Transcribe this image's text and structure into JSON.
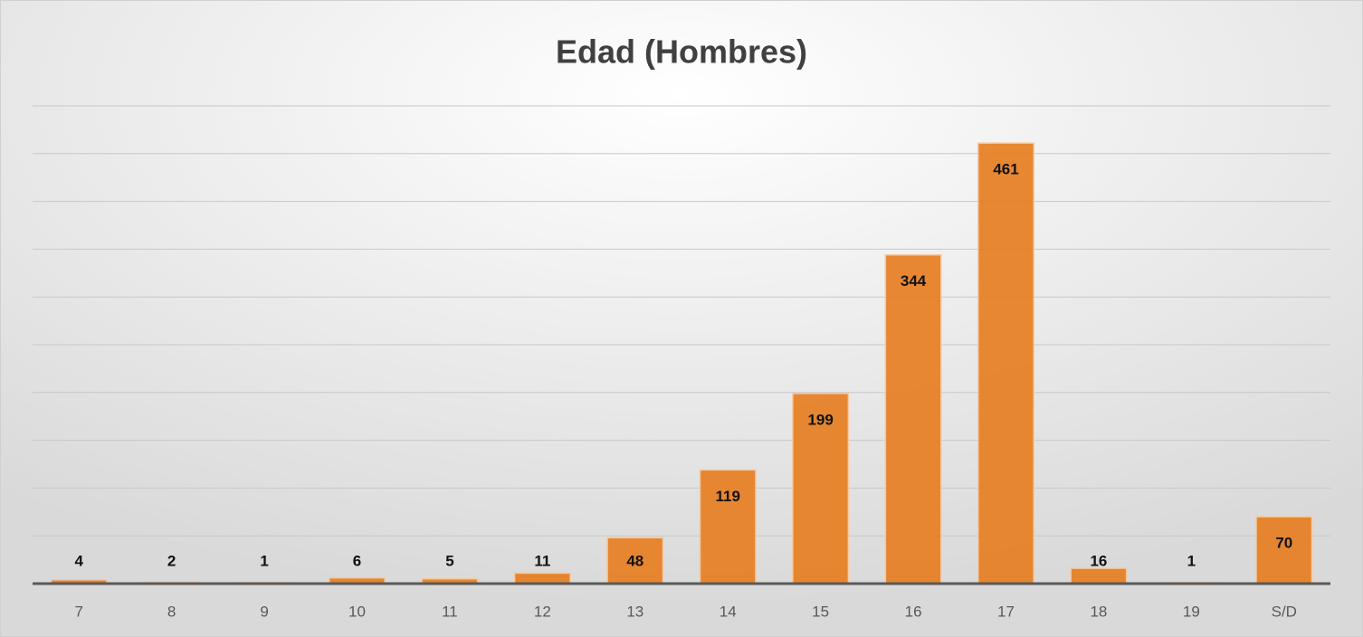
{
  "chart_data": {
    "type": "bar",
    "title": "Edad (Hombres)",
    "categories": [
      "7",
      "8",
      "9",
      "10",
      "11",
      "12",
      "13",
      "14",
      "15",
      "16",
      "17",
      "18",
      "19",
      "S/D"
    ],
    "values": [
      4,
      2,
      1,
      6,
      5,
      11,
      48,
      119,
      199,
      344,
      461,
      16,
      1,
      70
    ],
    "color": "#e67e22",
    "ylim": [
      0,
      500
    ],
    "yticks": [
      0,
      50,
      100,
      150,
      200,
      250,
      300,
      350,
      400,
      450,
      500
    ],
    "grid": true
  }
}
